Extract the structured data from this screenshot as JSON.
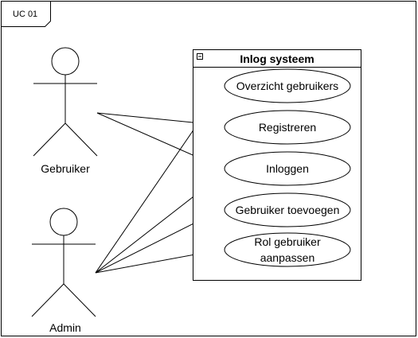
{
  "frame": {
    "label": "UC 01"
  },
  "system": {
    "title": "Inlog systeem",
    "collapse_icon": "minus-box-icon"
  },
  "actors": [
    {
      "id": "gebruiker",
      "label": "Gebruiker"
    },
    {
      "id": "admin",
      "label": "Admin"
    }
  ],
  "use_cases": [
    {
      "id": "overzicht",
      "lines": [
        "Overzicht gebruikers"
      ]
    },
    {
      "id": "registreren",
      "lines": [
        "Registreren"
      ]
    },
    {
      "id": "inloggen",
      "lines": [
        "Inloggen"
      ]
    },
    {
      "id": "toevoegen",
      "lines": [
        "Gebruiker toevoegen"
      ]
    },
    {
      "id": "rol",
      "lines": [
        "Rol gebruiker",
        "aanpassen"
      ]
    }
  ],
  "associations": [
    {
      "from": "gebruiker",
      "to": "registreren"
    },
    {
      "from": "gebruiker",
      "to": "inloggen"
    },
    {
      "from": "admin",
      "to": "overzicht"
    },
    {
      "from": "admin",
      "to": "inloggen"
    },
    {
      "from": "admin",
      "to": "toevoegen"
    },
    {
      "from": "admin",
      "to": "rol"
    }
  ]
}
